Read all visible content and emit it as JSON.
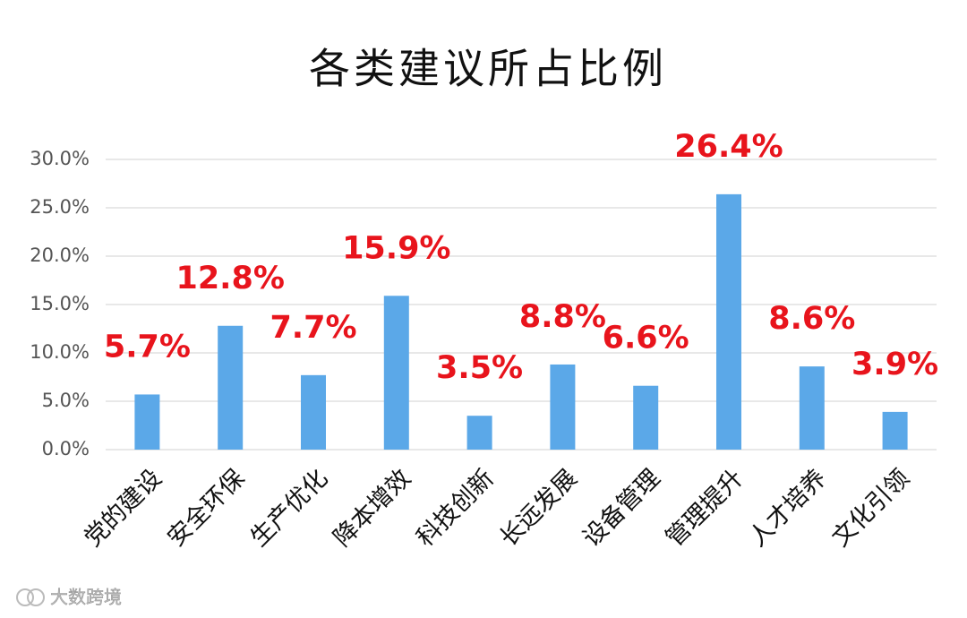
{
  "chart_data": {
    "type": "bar",
    "title": "各类建议所占比例",
    "categories": [
      "党的建设",
      "安全环保",
      "生产优化",
      "降本增效",
      "科技创新",
      "长远发展",
      "设备管理",
      "管理提升",
      "人才培养",
      "文化引领"
    ],
    "values": [
      5.7,
      12.8,
      7.7,
      15.9,
      3.5,
      8.8,
      6.6,
      26.4,
      8.6,
      3.9
    ],
    "value_labels": [
      "5.7%",
      "12.8%",
      "7.7%",
      "15.9%",
      "3.5%",
      "8.8%",
      "6.6%",
      "26.4%",
      "8.6%",
      "3.9%"
    ],
    "color": "#5ba8e8",
    "label_color": "#e8141c",
    "ylim": [
      0,
      30
    ],
    "yticks": [
      {
        "value": 0,
        "label": "0.0%"
      },
      {
        "value": 5,
        "label": "5.0%"
      },
      {
        "value": 10,
        "label": "10.0%"
      },
      {
        "value": 15,
        "label": "15.0%"
      },
      {
        "value": 20,
        "label": "20.0%"
      },
      {
        "value": 25,
        "label": "25.0%"
      },
      {
        "value": 30,
        "label": "30.0%"
      }
    ],
    "grid": true
  },
  "watermark": "大数跨境"
}
